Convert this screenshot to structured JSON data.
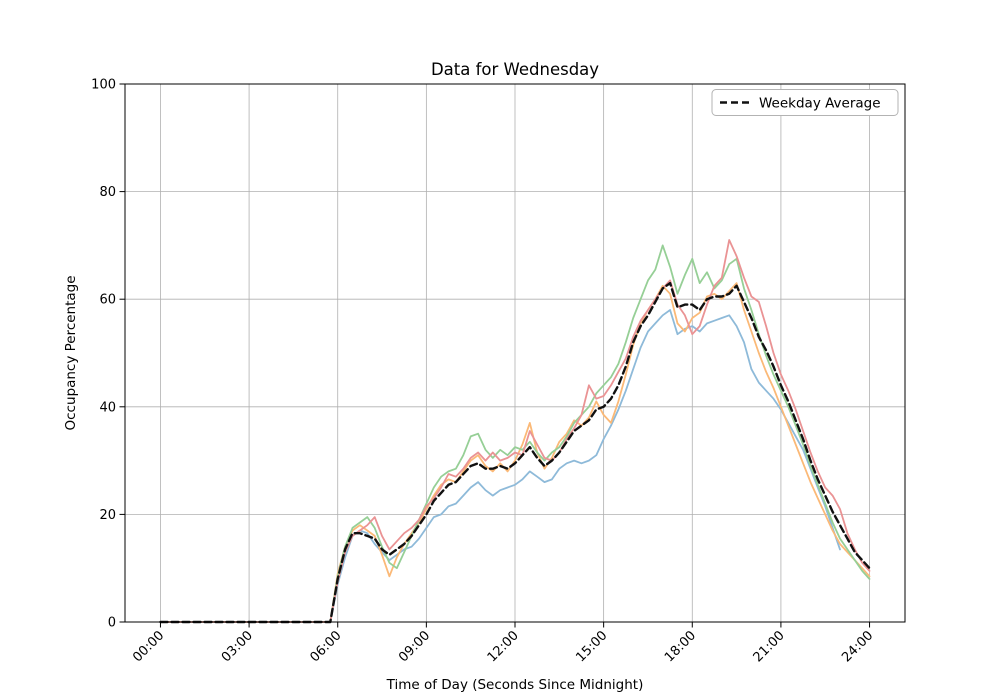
{
  "chart": {
    "title": "Data for Wednesday",
    "xlabel": "Time of Day (Seconds Since Midnight)",
    "ylabel": "Occupancy Percentage",
    "legend_label": "Weekday Average"
  },
  "style": {
    "background": "#ffffff",
    "grid_color": "#b0b0b0",
    "axis_color": "#000000",
    "legend_border_color": "#b3b3b3"
  },
  "chart_data": {
    "type": "line",
    "title": "Data for Wednesday",
    "xlabel": "Time of Day (Seconds Since Midnight)",
    "ylabel": "Occupancy Percentage",
    "grid": true,
    "legend_position": "upper right",
    "ylim": [
      0,
      100
    ],
    "xlim_hours": [
      -1.2,
      25.2
    ],
    "yticks": [
      0,
      20,
      40,
      60,
      80,
      100
    ],
    "xticks_hours": [
      0,
      3,
      6,
      9,
      12,
      15,
      18,
      21,
      24
    ],
    "xtick_labels": [
      "00:00",
      "03:00",
      "06:00",
      "09:00",
      "12:00",
      "15:00",
      "18:00",
      "21:00",
      "24:00"
    ],
    "x_hours": [
      0,
      0.25,
      0.5,
      0.75,
      1,
      1.25,
      1.5,
      1.75,
      2,
      2.25,
      2.5,
      2.75,
      3,
      3.25,
      3.5,
      3.75,
      4,
      4.25,
      4.5,
      4.75,
      5,
      5.25,
      5.5,
      5.75,
      6,
      6.25,
      6.5,
      6.75,
      7,
      7.25,
      7.5,
      7.75,
      8,
      8.25,
      8.5,
      8.75,
      9,
      9.25,
      9.5,
      9.75,
      10,
      10.25,
      10.5,
      10.75,
      11,
      11.25,
      11.5,
      11.75,
      12,
      12.25,
      12.5,
      12.75,
      13,
      13.25,
      13.5,
      13.75,
      14,
      14.25,
      14.5,
      14.75,
      15,
      15.25,
      15.5,
      15.75,
      16,
      16.25,
      16.5,
      16.75,
      17,
      17.25,
      17.5,
      17.75,
      18,
      18.25,
      18.5,
      18.75,
      19,
      19.25,
      19.5,
      19.75,
      20,
      20.25,
      20.5,
      20.75,
      21,
      21.25,
      21.5,
      21.75,
      22,
      22.25,
      22.5,
      22.75,
      23,
      23.25,
      23.5,
      23.75,
      24
    ],
    "series": [
      {
        "name": "day-series-blue",
        "color": "#8ebad9",
        "dash": null,
        "width": 1.8,
        "values": [
          0,
          0,
          0,
          0,
          0,
          0,
          0,
          0,
          0,
          0,
          0,
          0,
          0,
          0,
          0,
          0,
          0,
          0,
          0,
          0,
          0,
          0,
          0,
          0,
          7,
          12,
          16,
          17,
          16.5,
          14.5,
          13,
          11.5,
          12.5,
          13.5,
          14,
          15.5,
          17.5,
          19.5,
          20,
          21.5,
          22,
          23.5,
          25,
          26,
          24.5,
          23.5,
          24.5,
          25,
          25.5,
          26.5,
          28,
          27,
          26,
          26.5,
          28.5,
          29.5,
          30,
          29.5,
          30,
          31,
          34,
          36.5,
          39.5,
          43,
          47,
          51,
          54,
          55.5,
          57,
          58,
          53.5,
          54.5,
          55,
          54,
          55.5,
          56,
          56.5,
          57,
          55,
          52,
          47,
          44.5,
          43,
          41.5,
          39.5,
          37,
          34.5,
          32,
          28.5,
          25,
          21.5,
          17.5,
          13.5,
          null,
          null,
          null,
          null
        ]
      },
      {
        "name": "day-series-orange",
        "color": "#fbb977",
        "dash": null,
        "width": 1.8,
        "values": [
          0,
          0,
          0,
          0,
          0,
          0,
          0,
          0,
          0,
          0,
          0,
          0,
          0,
          0,
          0,
          0,
          0,
          0,
          0,
          0,
          0,
          0,
          0,
          0,
          9,
          14,
          17,
          18,
          17,
          16,
          12.5,
          8.5,
          12,
          14.5,
          16.5,
          18.5,
          21,
          23.5,
          25.5,
          26.5,
          26,
          28,
          30,
          31,
          29,
          28,
          29.5,
          28,
          30,
          33,
          37,
          31.5,
          28.5,
          30.5,
          33.5,
          35,
          37.5,
          36.5,
          38,
          41,
          38.5,
          37,
          41,
          46,
          51.5,
          55.5,
          58,
          60,
          62.5,
          61,
          55.5,
          54,
          56.5,
          57.5,
          60.5,
          61,
          60,
          61.5,
          63,
          58,
          54,
          50,
          46.5,
          43.5,
          40,
          36.5,
          33,
          29.5,
          26,
          23,
          20,
          17,
          14.5,
          13,
          11.5,
          10,
          8.5
        ]
      },
      {
        "name": "day-series-green",
        "color": "#96cf96",
        "dash": null,
        "width": 1.8,
        "values": [
          0,
          0,
          0,
          0,
          0,
          0,
          0,
          0,
          0,
          0,
          0,
          0,
          0,
          0,
          0,
          0,
          0,
          0,
          0,
          0,
          0,
          0,
          0,
          0,
          8.5,
          14,
          17.5,
          18.5,
          19.5,
          17.5,
          14,
          11,
          10,
          13,
          16,
          19,
          22,
          25,
          27,
          28,
          28.5,
          31,
          34.5,
          35,
          32,
          30.5,
          32,
          31,
          32.5,
          32,
          33.5,
          31.5,
          30,
          31.5,
          32.5,
          34.5,
          37,
          38.5,
          40,
          42.5,
          44,
          45.5,
          48,
          52,
          56.5,
          60,
          63.5,
          65.5,
          70,
          66,
          61,
          64.5,
          67.5,
          63,
          65,
          62,
          63.5,
          66.5,
          67.5,
          62,
          58,
          53.5,
          49.5,
          46,
          43,
          40,
          36.5,
          33,
          29,
          25.5,
          22,
          18.5,
          15.5,
          13.5,
          11.5,
          9.5,
          8
        ]
      },
      {
        "name": "day-series-red",
        "color": "#ea9394",
        "dash": null,
        "width": 1.8,
        "values": [
          0,
          0,
          0,
          0,
          0,
          0,
          0,
          0,
          0,
          0,
          0,
          0,
          0,
          0,
          0,
          0,
          0,
          0,
          0,
          0,
          0,
          0,
          0,
          0,
          7.5,
          13,
          16,
          17,
          18,
          19.5,
          16,
          13.5,
          15,
          16.5,
          17.5,
          19,
          21.5,
          23,
          25,
          27.5,
          27,
          28.5,
          30.5,
          31.5,
          30,
          31.5,
          30,
          30.5,
          31.5,
          31,
          35.5,
          33,
          30.5,
          30,
          31.5,
          34,
          36,
          38.5,
          44,
          41.5,
          42,
          44,
          46.5,
          49,
          53,
          56,
          58,
          60,
          62,
          63.5,
          59,
          57,
          53.5,
          55,
          59,
          62.5,
          64,
          71,
          68,
          64,
          60.5,
          59.5,
          55,
          50,
          46,
          43,
          39.5,
          35.5,
          31.5,
          28,
          25,
          23.5,
          21,
          16.5,
          13.5,
          11,
          9.5
        ]
      },
      {
        "name": "weekday-average",
        "color": "#111111",
        "dash": [
          7,
          4
        ],
        "width": 2.4,
        "values": [
          0,
          0,
          0,
          0,
          0,
          0,
          0,
          0,
          0,
          0,
          0,
          0,
          0,
          0,
          0,
          0,
          0,
          0,
          0,
          0,
          0,
          0,
          0,
          0,
          8,
          13.5,
          16.5,
          16.5,
          16,
          15.5,
          13.5,
          12.5,
          13.5,
          14.5,
          16,
          18,
          20,
          22.5,
          24,
          25.5,
          26,
          27.5,
          29,
          29.5,
          28.5,
          28.5,
          29,
          28.5,
          29.5,
          31,
          32.5,
          30.5,
          29,
          30,
          31.5,
          33.5,
          35.5,
          36.5,
          37.5,
          39.5,
          40,
          41.5,
          44,
          47.5,
          52,
          55,
          57,
          59.5,
          62,
          63,
          58.5,
          59,
          59,
          58,
          60,
          60.5,
          60.5,
          61,
          62.5,
          59.5,
          56.5,
          53,
          50.5,
          47.5,
          44,
          41,
          37.5,
          34,
          30,
          26.5,
          23.5,
          20.5,
          18,
          15.5,
          13,
          11.5,
          10
        ]
      }
    ]
  }
}
